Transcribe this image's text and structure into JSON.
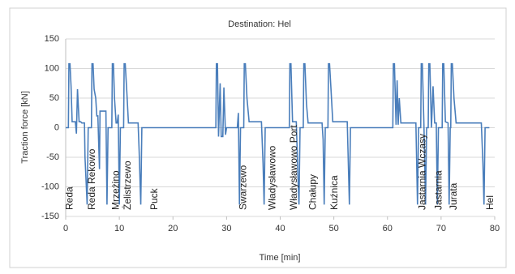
{
  "chart_data": {
    "type": "line",
    "title": "Destination: Hel",
    "x_label": "Time [min]",
    "y_label": "Traction force [kN]",
    "color": "#4a7ebb",
    "grid": true,
    "xlim": [
      0,
      80
    ],
    "xticks": [
      0,
      10,
      20,
      30,
      40,
      50,
      60,
      70,
      80
    ],
    "ylim": [
      -150,
      150
    ],
    "yticks": [
      -150,
      -100,
      -50,
      0,
      50,
      100,
      150
    ],
    "x": [
      0,
      0.5,
      0.6,
      0.8,
      1,
      1.2,
      1.8,
      2,
      2.2,
      2.5,
      2.8,
      3,
      3.5,
      3.6,
      4,
      4.2,
      4.8,
      4.9,
      5.1,
      5.3,
      5.6,
      5.8,
      6,
      6.3,
      6.4,
      7.5,
      7.7,
      7.9,
      8.6,
      8.7,
      8.9,
      9.1,
      9.4,
      9.6,
      9.8,
      10,
      10.2,
      10.8,
      10.9,
      11.1,
      11.4,
      11.7,
      13.5,
      13.7,
      14,
      14.2,
      28,
      28.1,
      28.3,
      28.5,
      28.8,
      29,
      29.3,
      29.5,
      29.8,
      30,
      32,
      32.2,
      32.4,
      32.6,
      33.2,
      33.3,
      33.5,
      33.8,
      34.2,
      36.5,
      36.8,
      37,
      37.2,
      41.7,
      41.8,
      42,
      42.3,
      43,
      43.3,
      43.5,
      43.7,
      44.3,
      44.4,
      44.6,
      44.9,
      45.2,
      47.8,
      48,
      48.2,
      48.4,
      48.9,
      49,
      49.2,
      49.5,
      49.8,
      52.5,
      52.7,
      52.9,
      53.1,
      61,
      61.1,
      61.3,
      61.6,
      61.8,
      62,
      62.2,
      62.5,
      65.3,
      65.6,
      65.8,
      66.2,
      66.3,
      66.5,
      66.8,
      67.1,
      67.3,
      67.6,
      67.7,
      67.9,
      68.2,
      68.5,
      68.8,
      69.1,
      69.3,
      69.5,
      70.2,
      70.3,
      70.5,
      70.8,
      71.3,
      71.5,
      71.7,
      71.8,
      71.9,
      72.1,
      72.4,
      72.8,
      77.5,
      77.8,
      78,
      78.2,
      79
    ],
    "values": [
      0,
      0,
      108,
      108,
      70,
      10,
      10,
      -10,
      65,
      10,
      10,
      8,
      8,
      -50,
      -130,
      0,
      0,
      108,
      108,
      65,
      50,
      20,
      20,
      -70,
      28,
      28,
      -130,
      0,
      0,
      108,
      108,
      50,
      8,
      8,
      22,
      -130,
      0,
      0,
      108,
      108,
      60,
      8,
      8,
      -40,
      -130,
      0,
      0,
      108,
      108,
      -15,
      75,
      -15,
      -15,
      68,
      -12,
      0,
      0,
      25,
      -130,
      0,
      0,
      108,
      108,
      50,
      10,
      10,
      -60,
      -130,
      0,
      0,
      108,
      108,
      10,
      10,
      -80,
      -130,
      0,
      0,
      108,
      108,
      40,
      8,
      8,
      -20,
      -130,
      0,
      0,
      108,
      108,
      60,
      10,
      10,
      -60,
      -130,
      0,
      0,
      108,
      108,
      5,
      80,
      5,
      50,
      8,
      8,
      -130,
      0,
      0,
      108,
      108,
      5,
      -130,
      0,
      0,
      108,
      108,
      0,
      70,
      8,
      8,
      -130,
      0,
      0,
      108,
      108,
      10,
      8,
      -130,
      0,
      0,
      108,
      108,
      50,
      8,
      8,
      -60,
      -130,
      0,
      0
    ],
    "stations": [
      {
        "label": "Reda",
        "x": 0.8
      },
      {
        "label": "Reda Rekowo",
        "x": 5.0
      },
      {
        "label": "Mrzeżino",
        "x": 9.4
      },
      {
        "label": "Żelistrzewo",
        "x": 11.6
      },
      {
        "label": "Puck",
        "x": 16.6
      },
      {
        "label": "Swarzewo",
        "x": 33.2
      },
      {
        "label": "Władysławowo",
        "x": 38.6
      },
      {
        "label": "Władysławowo Port",
        "x": 42.6
      },
      {
        "label": "Chałupy",
        "x": 46.2
      },
      {
        "label": "Kuźnica",
        "x": 50.2
      },
      {
        "label": "Jastarnia Wczasy",
        "x": 66.6
      },
      {
        "label": "Jastarnia",
        "x": 69.6
      },
      {
        "label": "Jurata",
        "x": 72.4
      },
      {
        "label": "Hel",
        "x": 79.2
      }
    ]
  }
}
